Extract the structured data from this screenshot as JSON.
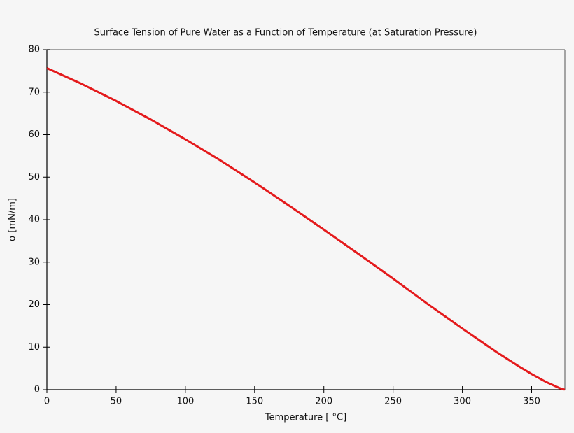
{
  "chart_data": {
    "type": "line",
    "title": "Surface Tension of Pure Water as a Function of Temperature (at Saturation Pressure)",
    "xlabel": "Temperature [ °C]",
    "ylabel": "σ [mN/m]",
    "x": [
      0,
      25,
      50,
      75,
      100,
      125,
      150,
      175,
      200,
      225,
      250,
      275,
      300,
      325,
      340,
      350,
      360,
      370,
      373.9
    ],
    "series": [
      {
        "name": "σ",
        "color": "#e41a1c",
        "values": [
          75.65,
          71.97,
          67.94,
          63.58,
          58.91,
          54.0,
          48.74,
          43.28,
          37.65,
          31.93,
          26.14,
          20.14,
          14.37,
          8.77,
          5.63,
          3.67,
          1.88,
          0.39,
          0
        ]
      }
    ],
    "xlim": [
      0,
      374
    ],
    "xticks": [
      0,
      50,
      100,
      150,
      200,
      250,
      300,
      350
    ],
    "ylim": [
      0,
      80
    ],
    "yticks": [
      0,
      10,
      20,
      30,
      40,
      50,
      60,
      70,
      80
    ]
  }
}
